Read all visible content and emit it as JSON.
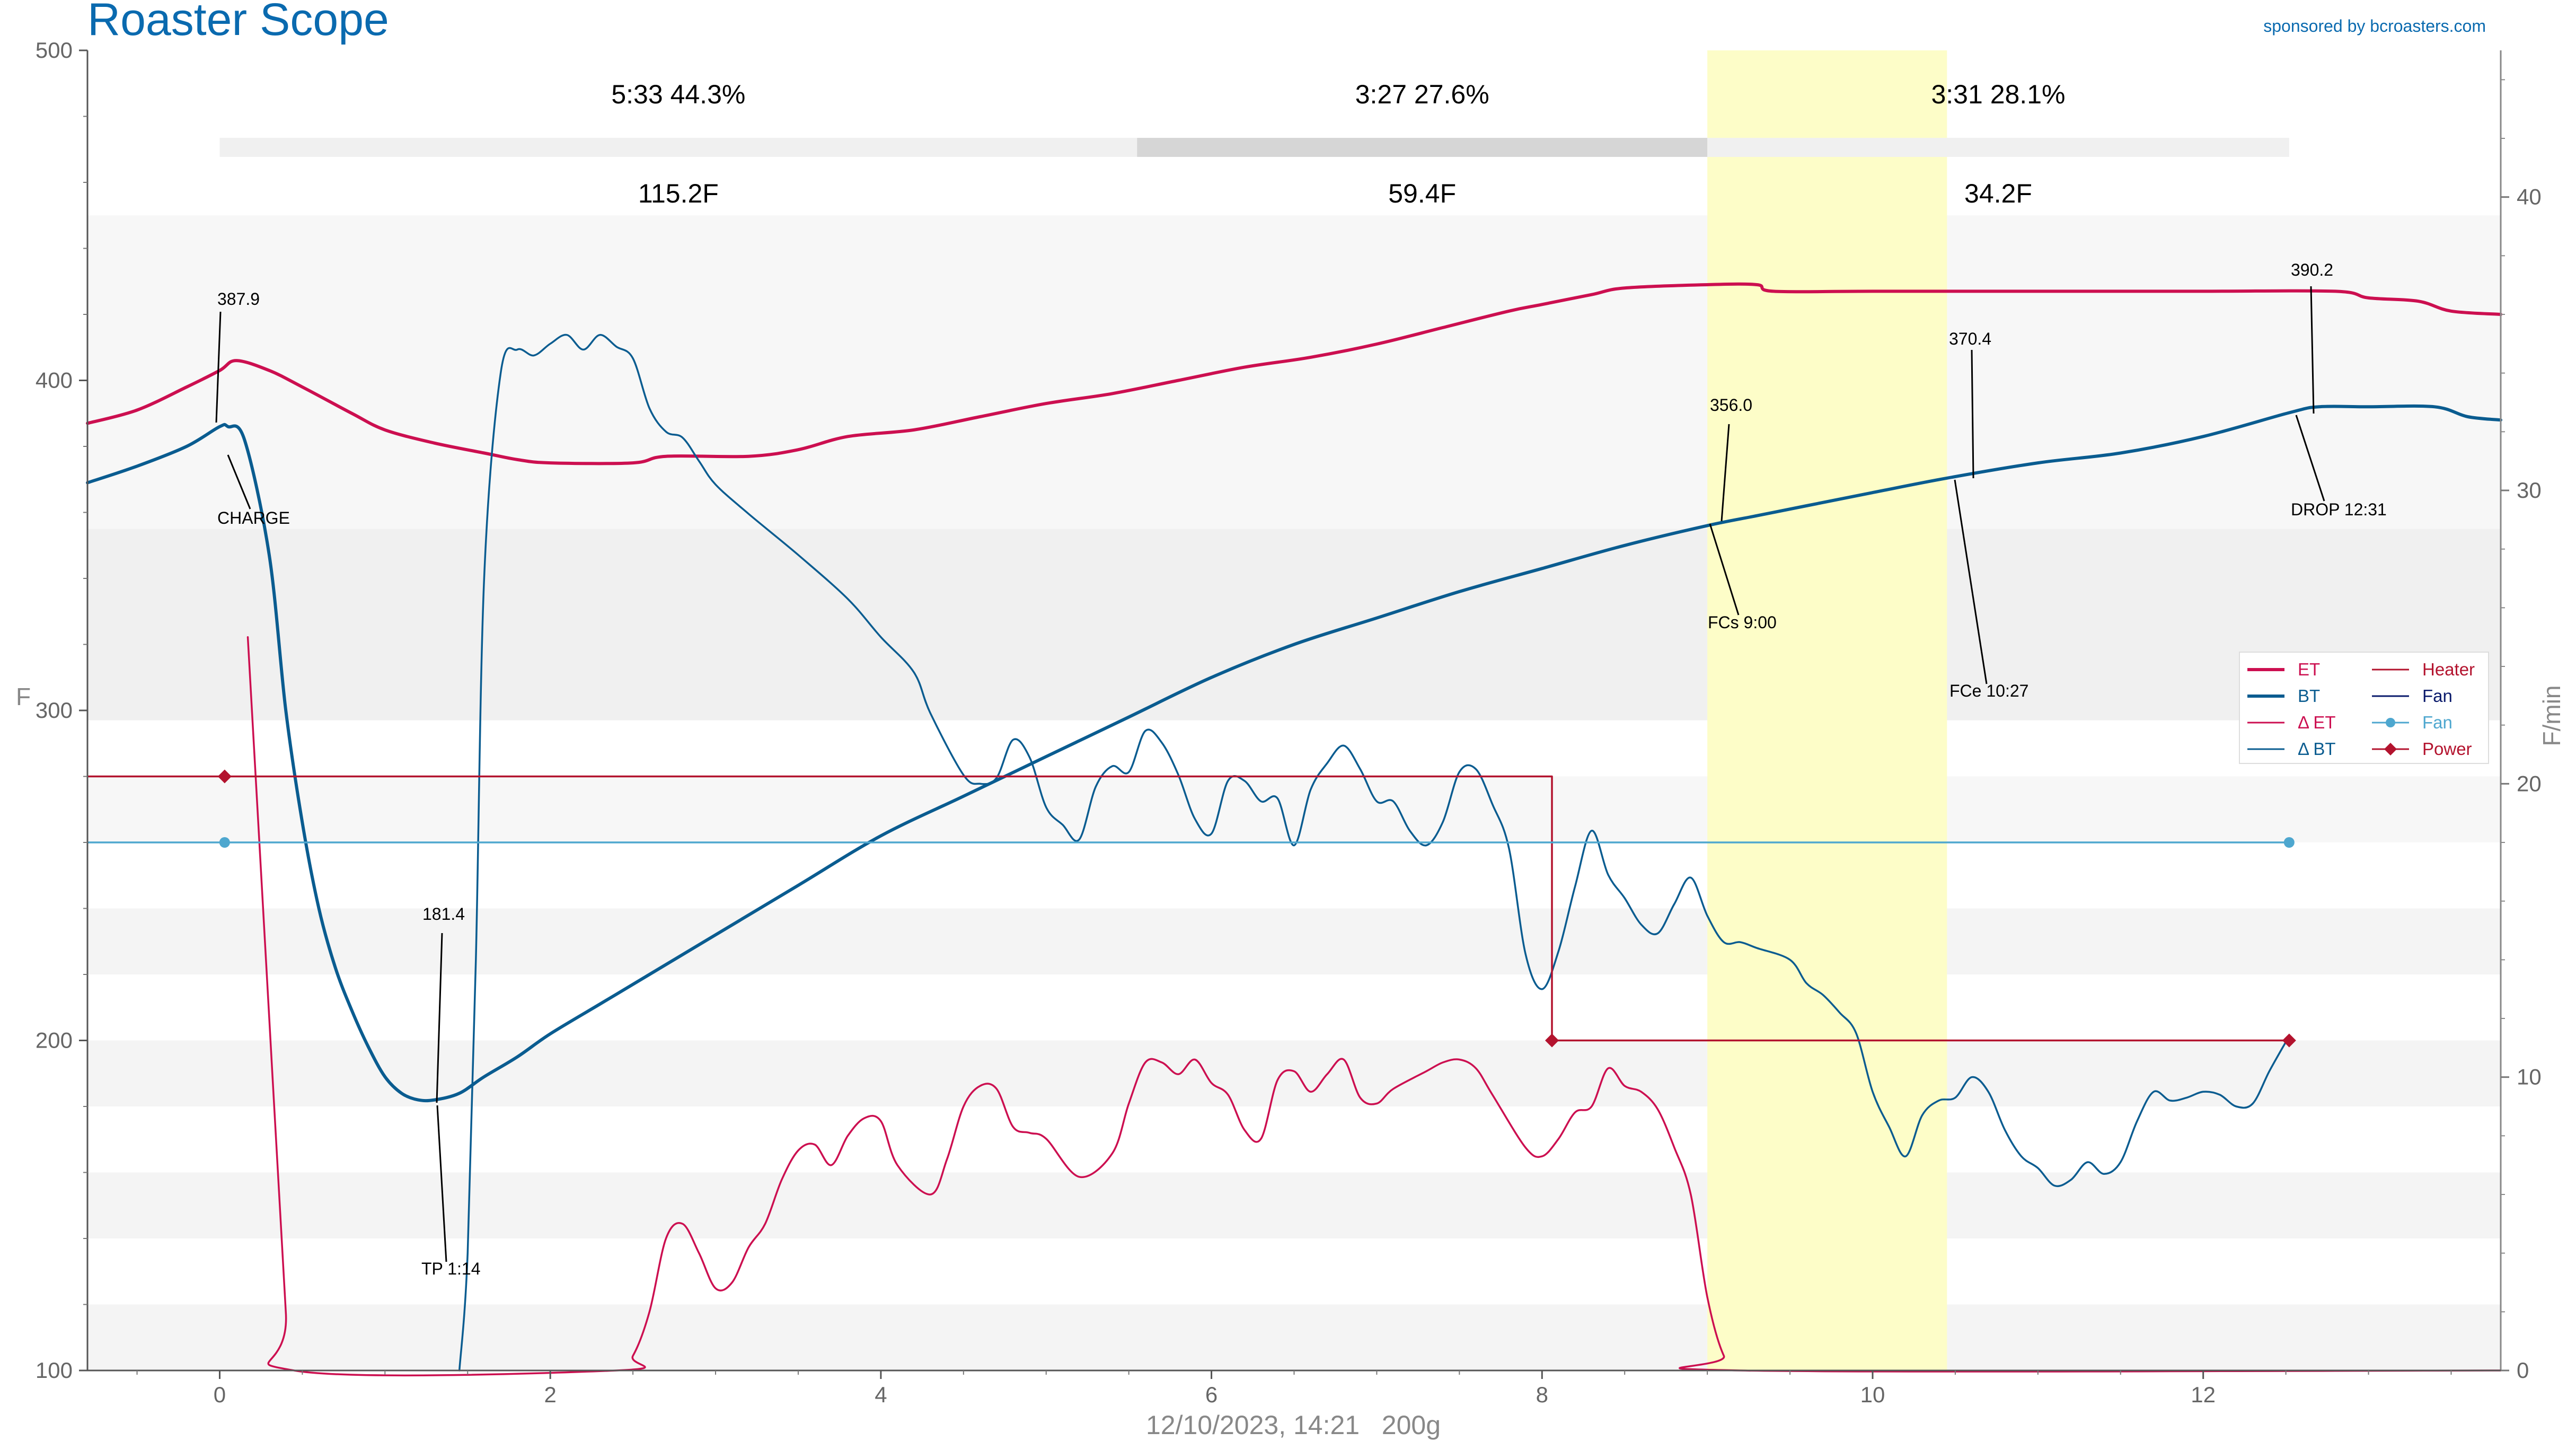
{
  "app": {
    "title": "Roaster Scope",
    "sponsor": "sponsored by bcroasters.com",
    "footer": "12/10/2023, 14:21   200g"
  },
  "colors": {
    "et": "#cc0f50",
    "bt": "#0a5c90",
    "delta_et": "#cc0f50",
    "delta_bt": "#0a5c90",
    "heater": "#b3132e",
    "fan": "#0a1a6b",
    "fan_line": "#4ea7cf",
    "power": "#b3132e",
    "title": "#0a6aaf",
    "dev_highlight": "#fdfdc8"
  },
  "chart_data": {
    "type": "line",
    "title": "Roaster Scope",
    "xlabel": "12/10/2023, 14:21   200g",
    "ylabel": "F",
    "y2label": "F/min",
    "xlim": [
      -0.8,
      13.8
    ],
    "ylim": [
      100,
      500
    ],
    "y2lim": [
      0,
      45
    ],
    "xticks": [
      0,
      2,
      4,
      6,
      8,
      10,
      12
    ],
    "yticks": [
      100,
      200,
      300,
      400,
      500
    ],
    "y2ticks": [
      0,
      10,
      20,
      30,
      40
    ],
    "grid": "horizontal bands",
    "legend_position": "right",
    "legend": [
      {
        "key": "et",
        "label": "ET",
        "kind": "line"
      },
      {
        "key": "bt",
        "label": "BT",
        "kind": "line"
      },
      {
        "key": "delta_et",
        "label": "Δ ET",
        "kind": "thin"
      },
      {
        "key": "delta_bt",
        "label": "Δ BT",
        "kind": "thin"
      },
      {
        "key": "heater",
        "label": "Heater",
        "kind": "thin"
      },
      {
        "key": "fan",
        "label": "Fan",
        "kind": "thin"
      },
      {
        "key": "fan_line",
        "label": "Fan",
        "kind": "dot"
      },
      {
        "key": "power",
        "label": "Power",
        "kind": "diamond"
      }
    ],
    "phases": [
      {
        "time": "5:33",
        "pct": "44.3%",
        "rise": "115.2F",
        "start": 0,
        "end": 5.55,
        "shade": "#f0f0f0"
      },
      {
        "time": "3:27",
        "pct": "27.6%",
        "rise": "59.4F",
        "start": 5.55,
        "end": 9.0,
        "shade": "#d6d6d6"
      },
      {
        "time": "3:31",
        "pct": "28.1%",
        "rise": "34.2F",
        "start": 9.0,
        "end": 12.52,
        "shade": "#f0f0f0"
      }
    ],
    "development_band": {
      "start": 9.0,
      "end": 10.45
    },
    "series": [
      {
        "name": "ET",
        "key": "et",
        "axis": "left",
        "points": [
          [
            -0.8,
            387
          ],
          [
            -0.5,
            391
          ],
          [
            -0.2,
            398
          ],
          [
            0,
            403
          ],
          [
            0.1,
            406
          ],
          [
            0.3,
            403
          ],
          [
            0.5,
            398
          ],
          [
            0.8,
            390
          ],
          [
            1.0,
            385
          ],
          [
            1.3,
            381
          ],
          [
            1.6,
            378
          ],
          [
            1.8,
            376
          ],
          [
            2.0,
            375
          ],
          [
            2.5,
            375
          ],
          [
            2.7,
            377
          ],
          [
            3.2,
            377
          ],
          [
            3.5,
            379
          ],
          [
            3.8,
            383
          ],
          [
            4.2,
            385
          ],
          [
            4.6,
            389
          ],
          [
            5.0,
            393
          ],
          [
            5.4,
            396
          ],
          [
            5.8,
            400
          ],
          [
            6.2,
            404
          ],
          [
            6.6,
            407
          ],
          [
            7.0,
            411
          ],
          [
            7.4,
            416
          ],
          [
            7.8,
            421
          ],
          [
            8.0,
            423
          ],
          [
            8.3,
            426
          ],
          [
            8.5,
            428
          ],
          [
            9.0,
            429
          ],
          [
            9.3,
            429
          ],
          [
            9.4,
            427
          ],
          [
            10.0,
            427
          ],
          [
            11.0,
            427
          ],
          [
            12.0,
            427
          ],
          [
            12.8,
            427
          ],
          [
            13.0,
            425
          ],
          [
            13.3,
            424
          ],
          [
            13.5,
            421
          ],
          [
            13.8,
            420
          ]
        ]
      },
      {
        "name": "BT",
        "key": "bt",
        "axis": "left",
        "points": [
          [
            -0.8,
            369
          ],
          [
            -0.5,
            374
          ],
          [
            -0.2,
            380
          ],
          [
            0,
            386
          ],
          [
            0.05,
            386
          ],
          [
            0.15,
            382
          ],
          [
            0.3,
            347
          ],
          [
            0.4,
            300
          ],
          [
            0.5,
            266
          ],
          [
            0.6,
            240
          ],
          [
            0.7,
            222
          ],
          [
            0.8,
            209
          ],
          [
            0.9,
            198
          ],
          [
            1.0,
            189
          ],
          [
            1.1,
            184
          ],
          [
            1.2,
            182
          ],
          [
            1.3,
            182
          ],
          [
            1.45,
            184
          ],
          [
            1.6,
            189
          ],
          [
            1.8,
            195
          ],
          [
            2.0,
            202
          ],
          [
            2.3,
            211
          ],
          [
            2.6,
            220
          ],
          [
            3.0,
            232
          ],
          [
            3.5,
            247
          ],
          [
            4.0,
            262
          ],
          [
            4.5,
            274
          ],
          [
            5.0,
            286
          ],
          [
            5.5,
            298
          ],
          [
            6.0,
            310
          ],
          [
            6.5,
            320
          ],
          [
            7.0,
            328
          ],
          [
            7.5,
            336
          ],
          [
            8.0,
            343
          ],
          [
            8.5,
            350
          ],
          [
            9.0,
            356
          ],
          [
            9.3,
            359
          ],
          [
            9.6,
            362
          ],
          [
            10.0,
            366
          ],
          [
            10.45,
            370.4
          ],
          [
            11.0,
            375
          ],
          [
            11.5,
            378
          ],
          [
            12.0,
            383
          ],
          [
            12.52,
            390.2
          ],
          [
            12.7,
            392
          ],
          [
            13.0,
            392
          ],
          [
            13.4,
            392
          ],
          [
            13.6,
            389
          ],
          [
            13.8,
            388
          ]
        ]
      },
      {
        "name": "Δ ET",
        "key": "delta_et",
        "axis": "right",
        "points": [
          [
            0.17,
            25
          ],
          [
            0.3,
            12
          ],
          [
            0.4,
            2
          ],
          [
            0.45,
            0
          ],
          [
            2.4,
            0
          ],
          [
            2.5,
            0.5
          ],
          [
            2.6,
            2
          ],
          [
            2.7,
            4.5
          ],
          [
            2.8,
            5
          ],
          [
            2.9,
            4
          ],
          [
            3.0,
            2.8
          ],
          [
            3.1,
            3
          ],
          [
            3.2,
            4.2
          ],
          [
            3.3,
            5
          ],
          [
            3.4,
            6.5
          ],
          [
            3.5,
            7.5
          ],
          [
            3.6,
            7.7
          ],
          [
            3.7,
            7
          ],
          [
            3.8,
            8
          ],
          [
            3.9,
            8.6
          ],
          [
            4.0,
            8.5
          ],
          [
            4.1,
            7
          ],
          [
            4.3,
            6
          ],
          [
            4.4,
            7.2
          ],
          [
            4.5,
            9
          ],
          [
            4.6,
            9.7
          ],
          [
            4.7,
            9.6
          ],
          [
            4.8,
            8.3
          ],
          [
            4.9,
            8.1
          ],
          [
            5.0,
            7.9
          ],
          [
            5.2,
            6.6
          ],
          [
            5.4,
            7.4
          ],
          [
            5.5,
            9.1
          ],
          [
            5.6,
            10.5
          ],
          [
            5.7,
            10.5
          ],
          [
            5.8,
            10.1
          ],
          [
            5.9,
            10.6
          ],
          [
            6.0,
            9.8
          ],
          [
            6.1,
            9.4
          ],
          [
            6.2,
            8.2
          ],
          [
            6.3,
            7.9
          ],
          [
            6.4,
            9.9
          ],
          [
            6.5,
            10.2
          ],
          [
            6.6,
            9.5
          ],
          [
            6.7,
            10.1
          ],
          [
            6.8,
            10.6
          ],
          [
            6.9,
            9.3
          ],
          [
            7.0,
            9.1
          ],
          [
            7.1,
            9.6
          ],
          [
            7.3,
            10.2
          ],
          [
            7.4,
            10.5
          ],
          [
            7.5,
            10.6
          ],
          [
            7.6,
            10.3
          ],
          [
            7.7,
            9.4
          ],
          [
            7.9,
            7.6
          ],
          [
            8.0,
            7.3
          ],
          [
            8.1,
            7.9
          ],
          [
            8.2,
            8.8
          ],
          [
            8.3,
            9
          ],
          [
            8.4,
            10.3
          ],
          [
            8.5,
            9.7
          ],
          [
            8.6,
            9.5
          ],
          [
            8.7,
            8.9
          ],
          [
            8.8,
            7.6
          ],
          [
            8.9,
            6
          ],
          [
            9.0,
            2.5
          ],
          [
            9.1,
            0.5
          ],
          [
            9.2,
            0
          ],
          [
            13.8,
            0
          ]
        ]
      },
      {
        "name": "Δ BT",
        "key": "delta_bt",
        "axis": "right",
        "points": [
          [
            1.45,
            0
          ],
          [
            1.5,
            4
          ],
          [
            1.55,
            14
          ],
          [
            1.6,
            27
          ],
          [
            1.7,
            34
          ],
          [
            1.8,
            34.8
          ],
          [
            1.9,
            34.6
          ],
          [
            2.0,
            35
          ],
          [
            2.1,
            35.3
          ],
          [
            2.2,
            34.8
          ],
          [
            2.3,
            35.3
          ],
          [
            2.4,
            34.9
          ],
          [
            2.5,
            34.5
          ],
          [
            2.6,
            32.8
          ],
          [
            2.7,
            32
          ],
          [
            2.8,
            31.8
          ],
          [
            2.9,
            31
          ],
          [
            3.0,
            30.2
          ],
          [
            3.2,
            29.2
          ],
          [
            3.5,
            27.8
          ],
          [
            3.8,
            26.3
          ],
          [
            4.0,
            25
          ],
          [
            4.2,
            23.8
          ],
          [
            4.3,
            22.4
          ],
          [
            4.5,
            20.3
          ],
          [
            4.6,
            20
          ],
          [
            4.7,
            20.2
          ],
          [
            4.8,
            21.5
          ],
          [
            4.9,
            20.9
          ],
          [
            5.0,
            19.2
          ],
          [
            5.1,
            18.6
          ],
          [
            5.2,
            18.1
          ],
          [
            5.3,
            19.9
          ],
          [
            5.4,
            20.6
          ],
          [
            5.5,
            20.4
          ],
          [
            5.6,
            21.8
          ],
          [
            5.7,
            21.4
          ],
          [
            5.8,
            20.3
          ],
          [
            5.9,
            18.8
          ],
          [
            6.0,
            18.3
          ],
          [
            6.1,
            20.1
          ],
          [
            6.2,
            20.1
          ],
          [
            6.3,
            19.4
          ],
          [
            6.4,
            19.5
          ],
          [
            6.5,
            17.9
          ],
          [
            6.6,
            19.8
          ],
          [
            6.7,
            20.7
          ],
          [
            6.8,
            21.3
          ],
          [
            6.9,
            20.5
          ],
          [
            7.0,
            19.4
          ],
          [
            7.1,
            19.4
          ],
          [
            7.2,
            18.4
          ],
          [
            7.3,
            17.9
          ],
          [
            7.4,
            18.7
          ],
          [
            7.5,
            20.4
          ],
          [
            7.6,
            20.5
          ],
          [
            7.7,
            19.3
          ],
          [
            7.8,
            17.8
          ],
          [
            7.9,
            14.2
          ],
          [
            8.0,
            13
          ],
          [
            8.1,
            14.3
          ],
          [
            8.2,
            16.5
          ],
          [
            8.3,
            18.4
          ],
          [
            8.4,
            16.9
          ],
          [
            8.5,
            16.1
          ],
          [
            8.6,
            15.2
          ],
          [
            8.7,
            14.9
          ],
          [
            8.8,
            15.9
          ],
          [
            8.9,
            16.8
          ],
          [
            9.0,
            15.5
          ],
          [
            9.1,
            14.6
          ],
          [
            9.2,
            14.6
          ],
          [
            9.3,
            14.4
          ],
          [
            9.5,
            14
          ],
          [
            9.6,
            13.2
          ],
          [
            9.7,
            12.8
          ],
          [
            9.8,
            12.2
          ],
          [
            9.9,
            11.5
          ],
          [
            10.0,
            9.5
          ],
          [
            10.1,
            8.3
          ],
          [
            10.2,
            7.3
          ],
          [
            10.3,
            8.7
          ],
          [
            10.4,
            9.2
          ],
          [
            10.5,
            9.3
          ],
          [
            10.6,
            10
          ],
          [
            10.7,
            9.5
          ],
          [
            10.8,
            8.2
          ],
          [
            10.9,
            7.3
          ],
          [
            11.0,
            6.9
          ],
          [
            11.1,
            6.3
          ],
          [
            11.2,
            6.5
          ],
          [
            11.3,
            7.1
          ],
          [
            11.4,
            6.7
          ],
          [
            11.5,
            7.1
          ],
          [
            11.6,
            8.5
          ],
          [
            11.7,
            9.5
          ],
          [
            11.8,
            9.2
          ],
          [
            11.9,
            9.3
          ],
          [
            12.0,
            9.5
          ],
          [
            12.1,
            9.4
          ],
          [
            12.2,
            9
          ],
          [
            12.3,
            9.1
          ],
          [
            12.4,
            10.2
          ],
          [
            12.5,
            11.2
          ]
        ]
      },
      {
        "name": "Heater",
        "key": "heater",
        "axis": "left",
        "step": true,
        "points": [
          [
            -0.8,
            280
          ],
          [
            8.06,
            280
          ],
          [
            8.06,
            200
          ],
          [
            12.52,
            200
          ]
        ]
      },
      {
        "name": "Fan",
        "key": "fan_line",
        "axis": "left",
        "points": [
          [
            -0.8,
            260
          ],
          [
            12.52,
            260
          ]
        ]
      }
    ],
    "markers": {
      "fan_dots": [
        [
          0.03,
          260
        ],
        [
          12.52,
          260
        ]
      ],
      "power_diamonds": [
        [
          0.03,
          280
        ],
        [
          8.06,
          200
        ],
        [
          12.52,
          200
        ]
      ]
    },
    "annotations": [
      {
        "key": "charge",
        "value": "387.9",
        "event": "CHARGE",
        "x": 0.03,
        "y": 386
      },
      {
        "key": "tp",
        "value": "181.4",
        "event": "TP 1:14",
        "x": 1.23,
        "y": 182
      },
      {
        "key": "fcs",
        "value": "356.0",
        "event": "FCs 9:00",
        "x": 9.0,
        "y": 356
      },
      {
        "key": "fce",
        "value": "370.4",
        "event": "FCe 10:27",
        "x": 10.45,
        "y": 370.4
      },
      {
        "key": "drop",
        "value": "390.2",
        "event": "DROP 12:31",
        "x": 12.52,
        "y": 390.2
      }
    ]
  }
}
